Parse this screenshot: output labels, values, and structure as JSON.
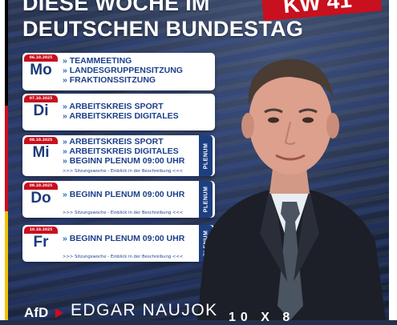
{
  "header": {
    "title_line1": "DIESE WOCHE IM",
    "title_line2": "DEUTSCHEN BUNDESTAG",
    "badge": "KW 41"
  },
  "days": [
    {
      "date": "06.10.2025",
      "day": "Mo",
      "items": [
        "TEAMMEETING",
        "LANDESGRUPPENSITZUNG",
        "FRAKTIONSSITZUNG"
      ],
      "note": "",
      "plenum": ""
    },
    {
      "date": "07.10.2025",
      "day": "Di",
      "items": [
        "ARBEITSKREIS SPORT",
        "ARBEITSKREIS DIGITALES"
      ],
      "note": "",
      "plenum": ""
    },
    {
      "date": "08.10.2025",
      "day": "Mi",
      "items": [
        "ARBEITSKREIS SPORT",
        "ARBEITSKREIS DIGITALES",
        "BEGINN PLENUM 09:00 UHR"
      ],
      "note": ">>> Sitzungswoche - Einblick in der Beschreibung <<<",
      "plenum": "PLENUM"
    },
    {
      "date": "09.10.2025",
      "day": "Do",
      "items": [
        "BEGINN PLENUM 09:00 UHR"
      ],
      "note": ">>> Sitzungswoche - Einblick in der Beschreibung <<<",
      "plenum": "PLENUM"
    },
    {
      "date": "10.10.2025",
      "day": "Fr",
      "items": [
        "BEGINN PLENUM 09:00 UHR"
      ],
      "note": ">>> Sitzungswoche - Einblick in der Beschreibung <<<",
      "plenum": "PLENUM"
    }
  ],
  "footer": {
    "logo": "AfD",
    "name": "EDGAR NAUJOK",
    "corner": "10 X 8"
  },
  "colors": {
    "red": "#c8101e",
    "navy": "#1d3f82",
    "text_blue": "#1b3f8a"
  }
}
